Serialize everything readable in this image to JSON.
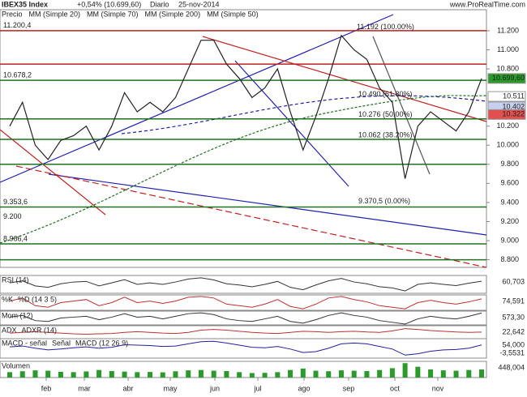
{
  "chart_data": {
    "type": "line",
    "title": "IBEX35 Index",
    "subtitle": "+0,54% (10.699,60)",
    "period": "Diario",
    "date": "25-nov-2014",
    "watermark": "www.ProRealTime.com",
    "legend": [
      {
        "text": "Precio",
        "color": "#555555"
      },
      {
        "text": "MM (Simple 20)",
        "color": "#d04040"
      },
      {
        "text": "MM (Simple 70)",
        "color": "#2020a0"
      },
      {
        "text": "MM (Simple 200)",
        "color": "#207020"
      },
      {
        "text": "MM (Simple 50)",
        "color": "#a0a0c0"
      }
    ],
    "series": [
      {
        "name": "Precio",
        "color": "#222222",
        "values": [
          10200,
          10450,
          10000,
          9850,
          10050,
          10100,
          10200,
          9950,
          10200,
          10550,
          10350,
          10450,
          10350,
          10500,
          10800,
          11100,
          11100,
          10850,
          10700,
          10500,
          10600,
          10800,
          10350,
          9950,
          10300,
          10700,
          11150,
          11000,
          10900,
          10600,
          10450,
          9650,
          10200,
          10350,
          10250,
          10150,
          10350,
          10700
        ]
      }
    ],
    "ylim": [
      8720,
      11420
    ],
    "yticks": [
      {
        "value": 11200,
        "label": "11.200"
      },
      {
        "value": 11000,
        "label": "11.000"
      },
      {
        "value": 10800,
        "label": "10.800"
      },
      {
        "value": 10200,
        "label": "10.200"
      },
      {
        "value": 10000,
        "label": "10.000"
      },
      {
        "value": 9800,
        "label": "9.800"
      },
      {
        "value": 9600,
        "label": "9.600"
      },
      {
        "value": 9400,
        "label": "9.400"
      },
      {
        "value": 9200,
        "label": "9.200"
      },
      {
        "value": 9000,
        "label": "9.000"
      },
      {
        "value": 8800,
        "label": "8.800"
      }
    ],
    "levels": [
      {
        "value": 11200,
        "color": "#c02020"
      },
      {
        "value": 10850,
        "color": "#c02020"
      },
      {
        "value": 10680,
        "color": "#207020"
      },
      {
        "value": 10276,
        "color": "#207020"
      },
      {
        "value": 10062,
        "color": "#207020"
      },
      {
        "value": 9800,
        "color": "#207020"
      },
      {
        "value": 9353,
        "color": "#207020"
      },
      {
        "value": 8966,
        "color": "#207020"
      },
      {
        "value": 8800,
        "color": "#207020"
      }
    ],
    "price_labels": [
      {
        "value": 10699.6,
        "label": "10.699,60",
        "color": "#2a9a2a"
      },
      {
        "value": 10511,
        "label": "10.511",
        "color": "#ffffff"
      },
      {
        "value": 10402,
        "label": "10.402",
        "color": "#c8d0f0"
      },
      {
        "value": 10322,
        "label": "10.322",
        "color": "#e05050"
      }
    ],
    "left_labels": [
      {
        "value": 11200.4,
        "label": "11.200,4"
      },
      {
        "value": 10678.2,
        "label": "10.678,2"
      },
      {
        "value": 9353.6,
        "label": "9.353,6"
      },
      {
        "value": 9200,
        "label": "9.200"
      },
      {
        "value": 8966.4,
        "label": "8.966,4"
      }
    ],
    "fib_labels": [
      {
        "value": 11192,
        "label": "11.192 (100.00%)"
      },
      {
        "value": 10490,
        "label": "10.490 (61.80%)"
      },
      {
        "value": 10276,
        "label": "10.276 (50.00%)"
      },
      {
        "value": 10062,
        "label": "10.062 (38.20%)"
      },
      {
        "value": 9370.5,
        "label": "9.370,5 (0.00%)"
      }
    ],
    "months": [
      "feb",
      "mar",
      "abr",
      "may",
      "jun",
      "jul",
      "ago",
      "sep",
      "oct",
      "nov"
    ],
    "panels": [
      {
        "titles": [
          "RSI (14)"
        ],
        "color": "#333333",
        "ylim": [
          20,
          80
        ],
        "values": [
          55,
          62,
          45,
          40,
          52,
          58,
          60,
          45,
          55,
          66,
          50,
          55,
          50,
          58,
          68,
          72,
          65,
          52,
          48,
          42,
          50,
          60,
          40,
          32,
          48,
          62,
          70,
          58,
          52,
          42,
          38,
          28,
          50,
          55,
          50,
          46,
          54,
          60.703
        ],
        "value_labels": [
          "60,703"
        ]
      },
      {
        "titles": [
          "%K",
          "%D (14 3 5)"
        ],
        "color": "#c03030",
        "ylim": [
          0,
          100
        ],
        "values": [
          60,
          80,
          30,
          20,
          50,
          60,
          70,
          30,
          50,
          85,
          50,
          60,
          45,
          60,
          85,
          90,
          80,
          40,
          30,
          20,
          40,
          70,
          25,
          10,
          40,
          80,
          90,
          70,
          55,
          30,
          20,
          10,
          50,
          65,
          50,
          40,
          55,
          74.591
        ],
        "value_labels": [
          "74,591"
        ]
      },
      {
        "titles": [
          "Mom (12)"
        ],
        "color": "#333333",
        "ylim": [
          -800,
          800
        ],
        "values": [
          100,
          300,
          -300,
          -400,
          0,
          100,
          200,
          -200,
          100,
          500,
          100,
          200,
          -100,
          200,
          500,
          600,
          400,
          -100,
          -300,
          -400,
          -100,
          200,
          -400,
          -600,
          -200,
          300,
          600,
          300,
          100,
          -300,
          -500,
          -700,
          -100,
          200,
          0,
          -100,
          200,
          573.3
        ],
        "value_labels": [
          "573,30"
        ]
      },
      {
        "titles": [
          "ADX",
          "ADXR (14)"
        ],
        "color": "#c03030",
        "ylim": [
          5,
          40
        ],
        "values": [
          20,
          22,
          24,
          22,
          20,
          18,
          17,
          18,
          19,
          22,
          24,
          22,
          20,
          19,
          22,
          28,
          30,
          28,
          25,
          22,
          20,
          19,
          22,
          25,
          24,
          22,
          24,
          25,
          23,
          22,
          26,
          32,
          30,
          27,
          25,
          23,
          22,
          22.642
        ],
        "value_labels": [
          "22,642"
        ]
      },
      {
        "titles": [
          "MACD - señal",
          "Señal",
          "MACD (12 26 9)"
        ],
        "color": "#2020a0",
        "ylim": [
          -250,
          200
        ],
        "values": [
          10,
          30,
          -20,
          -60,
          -40,
          -10,
          10,
          -20,
          0,
          60,
          50,
          40,
          20,
          30,
          80,
          130,
          140,
          100,
          50,
          0,
          -10,
          20,
          -40,
          -120,
          -100,
          -20,
          80,
          100,
          80,
          20,
          -40,
          -180,
          -150,
          -90,
          -60,
          -50,
          -20,
          54
        ],
        "value_labels": [
          "54,000",
          "-3,5531"
        ]
      },
      {
        "titles": [
          "Volumen"
        ],
        "color": "#2a9a2a",
        "ylim": [
          0,
          900
        ],
        "bars": true,
        "values": [
          300,
          350,
          400,
          380,
          320,
          300,
          340,
          420,
          360,
          330,
          300,
          310,
          290,
          350,
          400,
          420,
          380,
          360,
          300,
          250,
          260,
          300,
          420,
          500,
          380,
          350,
          400,
          380,
          360,
          420,
          520,
          800,
          600,
          450,
          400,
          380,
          420,
          448
        ],
        "value_labels": [
          "448,004"
        ]
      }
    ]
  }
}
